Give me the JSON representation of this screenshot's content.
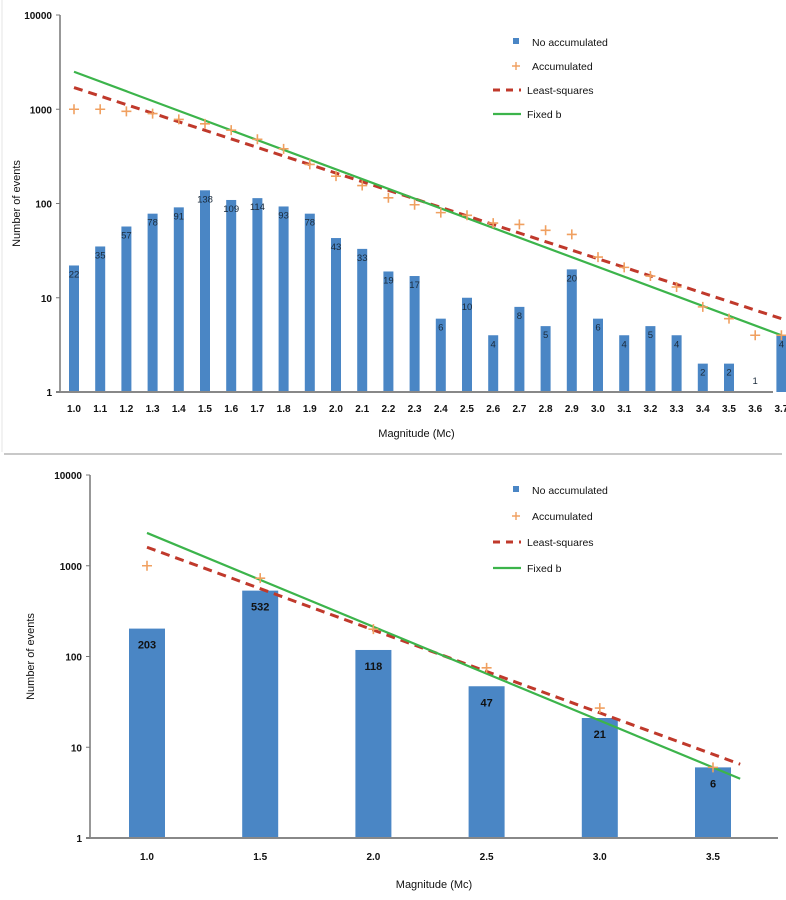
{
  "chart_data": [
    {
      "type": "bar",
      "title": "",
      "xlabel": "Magnitude (Mc)",
      "ylabel": "Number of events",
      "yscale": "log",
      "ylim": [
        1,
        10000
      ],
      "yticks": [
        "1",
        "10",
        "100",
        "1000",
        "10000"
      ],
      "categories": [
        "1.0",
        "1.1",
        "1.2",
        "1.3",
        "1.4",
        "1.5",
        "1.6",
        "1.7",
        "1.8",
        "1.9",
        "2.0",
        "2.1",
        "2.2",
        "2.3",
        "2.4",
        "2.5",
        "2.6",
        "2.7",
        "2.8",
        "2.9",
        "3.0",
        "3.1",
        "3.2",
        "3.3",
        "3.4",
        "3.5",
        "3.6",
        "3.7"
      ],
      "legend": {
        "position": "top-right",
        "entries": [
          "No accumulated",
          "Accumulated",
          "Least-squares",
          "Fixed b"
        ]
      },
      "series": [
        {
          "name": "No accumulated",
          "kind": "bar",
          "color": "#4a86c5",
          "values": [
            22,
            35,
            57,
            78,
            91,
            138,
            109,
            114,
            93,
            78,
            43,
            33,
            19,
            17,
            6,
            10,
            4,
            8,
            5,
            20,
            6,
            4,
            5,
            4,
            2,
            2,
            1,
            4
          ],
          "labels": [
            "22",
            "35",
            "57",
            "78",
            "91",
            "138",
            "109",
            "114",
            "93",
            "78",
            "43",
            "33",
            "19",
            "17",
            "6",
            "10",
            "4",
            "8",
            "5",
            "20",
            "6",
            "4",
            "5",
            "4",
            "2",
            "2",
            "1",
            "4"
          ]
        },
        {
          "name": "Accumulated",
          "kind": "scatter",
          "marker": "plus",
          "color": "#f0a060",
          "values": [
            1000,
            1000,
            950,
            900,
            780,
            700,
            600,
            480,
            380,
            260,
            195,
            155,
            115,
            97,
            80,
            75,
            62,
            60,
            52,
            47,
            27,
            21,
            17,
            13,
            8,
            6,
            4,
            4
          ]
        },
        {
          "name": "Least-squares",
          "kind": "line",
          "style": "dashed",
          "color": "#c0392b",
          "x": [
            1.0,
            3.7
          ],
          "values": [
            1700,
            6
          ]
        },
        {
          "name": "Fixed b",
          "kind": "line",
          "style": "solid",
          "color": "#3cb44b",
          "x": [
            1.0,
            3.7
          ],
          "values": [
            2500,
            4
          ]
        }
      ]
    },
    {
      "type": "bar",
      "title": "",
      "xlabel": "Magnitude (Mc)",
      "ylabel": "Number of events",
      "yscale": "log",
      "ylim": [
        1,
        10000
      ],
      "yticks": [
        "1",
        "10",
        "100",
        "1000",
        "10000"
      ],
      "categories": [
        "1.0",
        "1.5",
        "2.0",
        "2.5",
        "3.0",
        "3.5"
      ],
      "legend": {
        "position": "top-right",
        "entries": [
          "No accumulated",
          "Accumulated",
          "Least-squares",
          "Fixed b"
        ]
      },
      "series": [
        {
          "name": "No accumulated",
          "kind": "bar",
          "color": "#4a86c5",
          "values": [
            203,
            532,
            118,
            47,
            21,
            6
          ],
          "labels": [
            "203",
            "532",
            "118",
            "47",
            "21",
            "6"
          ]
        },
        {
          "name": "Accumulated",
          "kind": "scatter",
          "marker": "plus",
          "color": "#f0a060",
          "values": [
            1000,
            730,
            200,
            75,
            27,
            6
          ]
        },
        {
          "name": "Least-squares",
          "kind": "line",
          "style": "dashed",
          "color": "#c0392b",
          "x": [
            1.0,
            3.62
          ],
          "values": [
            1600,
            6.5
          ]
        },
        {
          "name": "Fixed b",
          "kind": "line",
          "style": "solid",
          "color": "#3cb44b",
          "x": [
            1.0,
            3.62
          ],
          "values": [
            2300,
            4.5
          ]
        }
      ]
    }
  ]
}
